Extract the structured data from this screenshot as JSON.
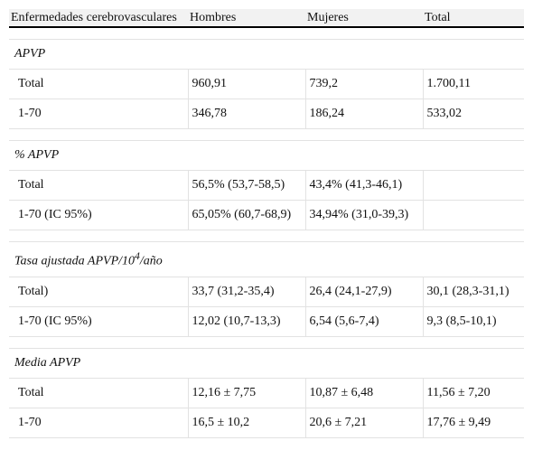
{
  "header": [
    "Enfermedades cerebrovasculares",
    "Hombres",
    "Mujeres",
    "Total"
  ],
  "sections": [
    {
      "title": {
        "text": "APVP"
      },
      "rows": [
        [
          "Total",
          "960,91",
          "739,2",
          "1.700,11"
        ],
        [
          "1-70",
          "346,78",
          "186,24",
          "533,02"
        ]
      ]
    },
    {
      "title": {
        "text": "% APVP"
      },
      "rows": [
        [
          "Total",
          "56,5% (53,7-58,5)",
          "43,4% (41,3-46,1)",
          null
        ],
        [
          "1-70 (IC 95%)",
          "65,05% (60,7-68,9)",
          "34,94% (31,0-39,3)",
          null
        ]
      ]
    },
    {
      "title": {
        "text": "Tasa ajustada APVP/10",
        "sup": "4",
        "after": "/año"
      },
      "rows": [
        [
          "Total)",
          "33,7 (31,2-35,4)",
          "26,4 (24,1-27,9)",
          "30,1 (28,3-31,1)"
        ],
        [
          "1-70 (IC 95%)",
          "12,02 (10,7-13,3)",
          "6,54 (5,6-7,4)",
          "9,3 (8,5-10,1)"
        ]
      ]
    },
    {
      "title": {
        "text": "Media APVP"
      },
      "rows": [
        [
          "Total",
          "12,16 ± 7,75",
          "10,87 ± 6,48",
          "11,56 ± 7,20"
        ],
        [
          "1-70",
          "16,5 ± 10,2",
          "20,6 ± 7,21",
          "17,76 ± 9,49"
        ]
      ]
    }
  ]
}
